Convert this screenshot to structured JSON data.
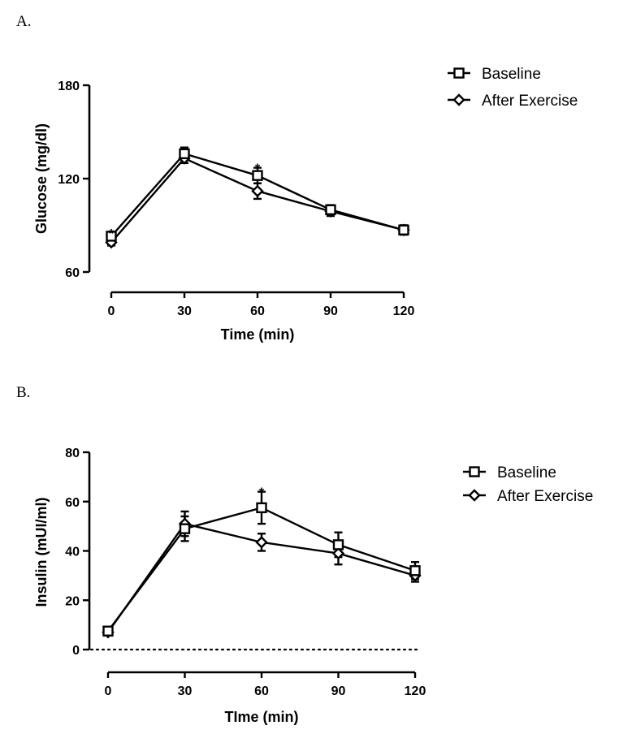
{
  "chart_data": [
    {
      "type": "line",
      "panel_label": "A.",
      "xlabel": "Time (min)",
      "ylabel": "Glucose (mg/dl)",
      "x": [
        0,
        30,
        60,
        90,
        120
      ],
      "xticks": [
        "0",
        "30",
        "60",
        "90",
        "120"
      ],
      "ylim": [
        60,
        180
      ],
      "yticks": [
        "60",
        "120",
        "180"
      ],
      "legend": "top-right",
      "series": [
        {
          "name": "Baseline",
          "marker": "square",
          "values": [
            83,
            136,
            122,
            100,
            87
          ],
          "errors": [
            2,
            4,
            5,
            3,
            3
          ]
        },
        {
          "name": "After Exercise",
          "marker": "diamond",
          "values": [
            79,
            133,
            112,
            99,
            87
          ],
          "errors": [
            2,
            3,
            5,
            3,
            3
          ]
        }
      ],
      "significance": [
        {
          "x": 0,
          "y": 85,
          "label": "*"
        },
        {
          "x": 60,
          "y": 127,
          "label": "*"
        }
      ]
    },
    {
      "type": "line",
      "panel_label": "B.",
      "xlabel": "TIme (min)",
      "ylabel": "Insulin (mUI/ml)",
      "x": [
        0,
        30,
        60,
        90,
        120
      ],
      "xticks": [
        "0",
        "30",
        "60",
        "90",
        "120"
      ],
      "ylim": [
        0,
        80
      ],
      "yticks": [
        "0",
        "20",
        "40",
        "60",
        "80"
      ],
      "legend": "top-right",
      "reference_line_y": 0,
      "series": [
        {
          "name": "Baseline",
          "marker": "square",
          "values": [
            7.5,
            49,
            57.5,
            42.5,
            32
          ],
          "errors": [
            1,
            5,
            6.5,
            5,
            3.5
          ]
        },
        {
          "name": "After Exercise",
          "marker": "diamond",
          "values": [
            7,
            51,
            43.5,
            39,
            30
          ],
          "errors": [
            1,
            5,
            3.5,
            4.5,
            2.5
          ]
        }
      ],
      "significance": [
        {
          "x": 60,
          "y": 64,
          "label": "*"
        }
      ]
    }
  ]
}
